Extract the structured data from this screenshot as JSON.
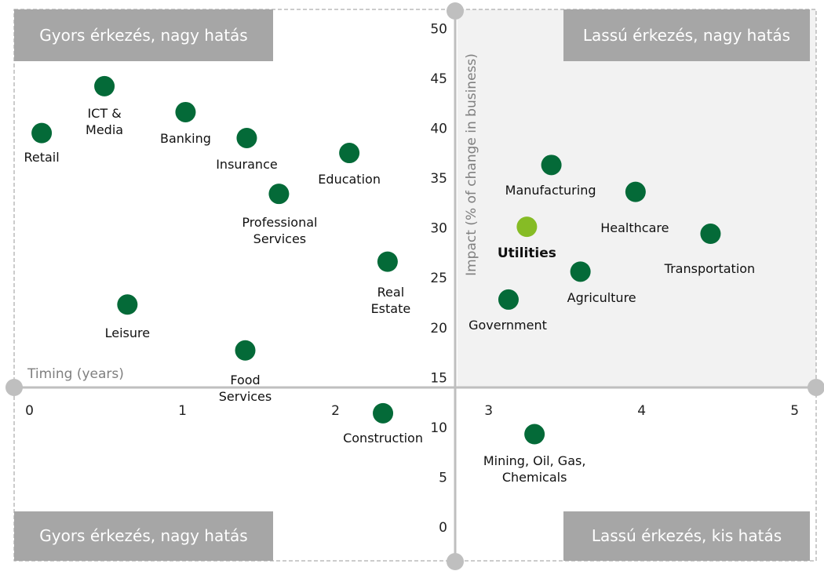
{
  "chart_data": {
    "type": "scatter",
    "xlabel": "Timing (years)",
    "ylabel": "Impact  (% of change in business)",
    "xlim": [
      -0.1,
      5.14
    ],
    "ylim": [
      -3.3,
      52
    ],
    "xticks": [
      0,
      1,
      2,
      3,
      4,
      5
    ],
    "yticks": [
      0,
      5,
      10,
      15,
      20,
      25,
      30,
      35,
      40,
      45,
      50
    ],
    "color": "#046a38",
    "highlight_color": "#86bc25",
    "quadrants": [
      "Gyors érkezés, nagy hatás",
      "Lassú érkezés, nagy hatás",
      "Gyors érkezés, nagy hatás",
      "Lassú érkezés, kis hatás"
    ],
    "points": [
      {
        "label": "Retail",
        "x": 0.08,
        "y": 39.6
      },
      {
        "label": "ICT & Media",
        "x": 0.49,
        "y": 44.3
      },
      {
        "label": "Banking",
        "x": 1.02,
        "y": 41.7
      },
      {
        "label": "Insurance",
        "x": 1.42,
        "y": 39.1
      },
      {
        "label": "Education",
        "x": 2.09,
        "y": 37.6
      },
      {
        "label": "Professional Services",
        "x": 1.63,
        "y": 33.5
      },
      {
        "label": "Real Estate",
        "x": 2.34,
        "y": 26.7
      },
      {
        "label": "Leisure",
        "x": 0.64,
        "y": 22.4
      },
      {
        "label": "Food Services",
        "x": 1.41,
        "y": 17.8
      },
      {
        "label": "Construction",
        "x": 2.31,
        "y": 11.5
      },
      {
        "label": "Manufacturing",
        "x": 3.41,
        "y": 36.4
      },
      {
        "label": "Healthcare",
        "x": 3.96,
        "y": 33.7
      },
      {
        "label": "Utilities",
        "x": 3.25,
        "y": 30.2,
        "highlight": true
      },
      {
        "label": "Transportation",
        "x": 4.45,
        "y": 29.5
      },
      {
        "label": "Agriculture",
        "x": 3.6,
        "y": 25.7
      },
      {
        "label": "Government",
        "x": 3.13,
        "y": 22.9
      },
      {
        "label": "Mining, Oil, Gas, Chemicals",
        "x": 3.3,
        "y": 9.4
      }
    ]
  }
}
